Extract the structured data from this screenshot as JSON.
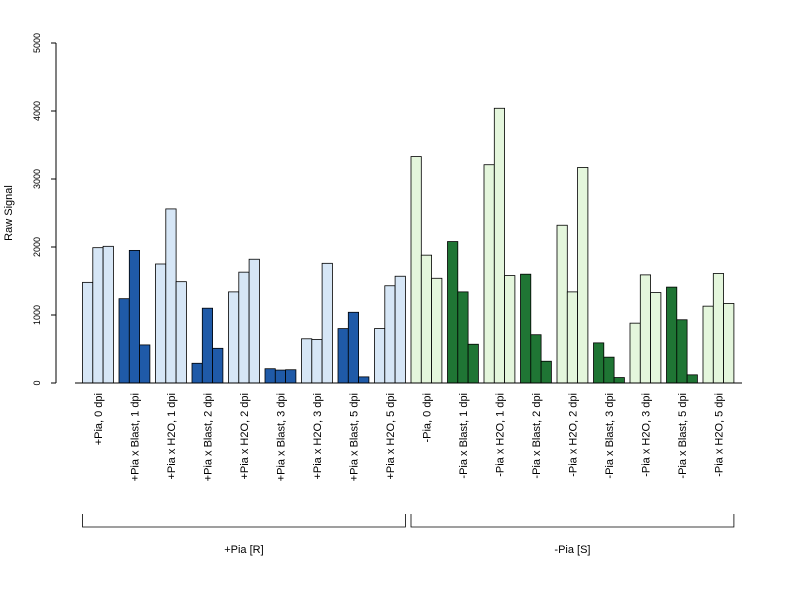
{
  "chart_data": {
    "type": "bar",
    "ylabel": "Raw Signal",
    "ylim": [
      0,
      5000
    ],
    "yticks": [
      0,
      1000,
      2000,
      3000,
      4000,
      5000
    ],
    "grid": false,
    "legend": "none",
    "colors": {
      "plus_light": "#d6e6f6",
      "plus_dark": "#1f5aa8",
      "minus_light": "#e4f6dc",
      "minus_dark": "#1f7534",
      "stroke": "#000000"
    },
    "categories": [
      {
        "label": "+Pia, 0 dpi",
        "values": [
          1480,
          1990,
          2010
        ],
        "shade": "plus_light"
      },
      {
        "label": "+Pia x Blast, 1 dpi",
        "values": [
          1240,
          1950,
          560
        ],
        "shade": "plus_dark"
      },
      {
        "label": "+Pia x H2O, 1 dpi",
        "values": [
          1750,
          2560,
          1490
        ],
        "shade": "plus_light"
      },
      {
        "label": "+Pia x Blast, 2 dpi",
        "values": [
          290,
          1100,
          510
        ],
        "shade": "plus_dark"
      },
      {
        "label": "+Pia x H2O, 2 dpi",
        "values": [
          1340,
          1630,
          1820
        ],
        "shade": "plus_light"
      },
      {
        "label": "+Pia x Blast, 3 dpi",
        "values": [
          210,
          190,
          195
        ],
        "shade": "plus_dark"
      },
      {
        "label": "+Pia x H2O, 3 dpi",
        "values": [
          650,
          640,
          1760
        ],
        "shade": "plus_light"
      },
      {
        "label": "+Pia x Blast, 5 dpi",
        "values": [
          800,
          1040,
          90
        ],
        "shade": "plus_dark"
      },
      {
        "label": "+Pia x H2O, 5 dpi",
        "values": [
          800,
          1430,
          1570
        ],
        "shade": "plus_light"
      },
      {
        "label": "-Pia, 0 dpi",
        "values": [
          3330,
          1880,
          1540
        ],
        "shade": "minus_light"
      },
      {
        "label": "-Pia x Blast, 1 dpi",
        "values": [
          2080,
          1340,
          570
        ],
        "shade": "minus_dark"
      },
      {
        "label": "-Pia x H2O, 1 dpi",
        "values": [
          3210,
          4040,
          1580
        ],
        "shade": "minus_light"
      },
      {
        "label": "-Pia x Blast, 2 dpi",
        "values": [
          1600,
          710,
          320
        ],
        "shade": "minus_dark"
      },
      {
        "label": "-Pia x H2O, 2 dpi",
        "values": [
          2320,
          1340,
          3170
        ],
        "shade": "minus_light"
      },
      {
        "label": "-Pia x Blast, 3 dpi",
        "values": [
          590,
          380,
          80
        ],
        "shade": "minus_dark"
      },
      {
        "label": "-Pia x H2O, 3 dpi",
        "values": [
          880,
          1590,
          1330
        ],
        "shade": "minus_light"
      },
      {
        "label": "-Pia x Blast, 5 dpi",
        "values": [
          1410,
          930,
          120
        ],
        "shade": "minus_dark"
      },
      {
        "label": "-Pia x H2O, 5 dpi",
        "values": [
          1130,
          1610,
          1170
        ],
        "shade": "minus_light"
      }
    ],
    "groups": [
      {
        "label": "+Pia [R]",
        "first": 0,
        "last": 8
      },
      {
        "label": "-Pia [S]",
        "first": 9,
        "last": 17
      }
    ]
  }
}
